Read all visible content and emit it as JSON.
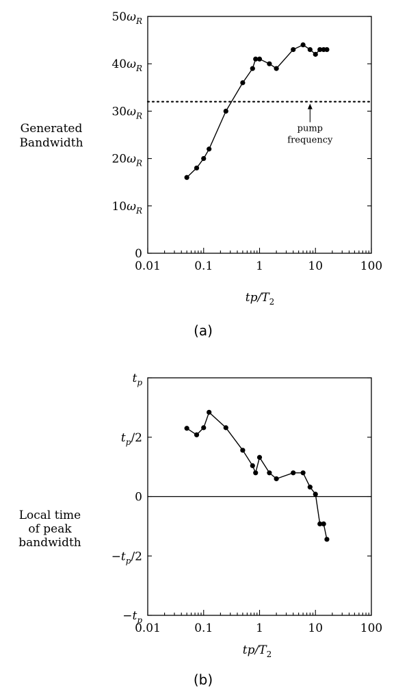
{
  "chart_data": [
    {
      "panel": "(a)",
      "type": "line",
      "x_scale": "log",
      "xlim": [
        0.01,
        100
      ],
      "ylim": [
        0,
        50
      ],
      "xlabel": "tp/T_2",
      "ylabel_lines": [
        "Generated",
        "Bandwidth"
      ],
      "x_ticks": [
        {
          "value": 0.01,
          "label": "0.01"
        },
        {
          "value": 0.1,
          "label": "0.1"
        },
        {
          "value": 1,
          "label": "1"
        },
        {
          "value": 10,
          "label": "10"
        },
        {
          "value": 100,
          "label": "100"
        }
      ],
      "y_ticks": [
        {
          "value": 0,
          "label": "0",
          "sub": ""
        },
        {
          "value": 10,
          "label": "10ω",
          "sub": "R"
        },
        {
          "value": 20,
          "label": "20ω",
          "sub": "R"
        },
        {
          "value": 30,
          "label": "30ω",
          "sub": "R"
        },
        {
          "value": 40,
          "label": "40ω",
          "sub": "R"
        },
        {
          "value": 50,
          "label": "50ω",
          "sub": "R"
        }
      ],
      "series": [
        {
          "x": [
            0.05,
            0.075,
            0.1,
            0.125,
            0.25,
            0.5,
            0.75,
            0.85,
            1.0,
            1.5,
            2.0,
            4.0,
            6.0,
            8.0,
            10.0,
            12.0,
            14.0,
            16.0
          ],
          "y": [
            16,
            18,
            20,
            22,
            30,
            36,
            39,
            41,
            41,
            40,
            39,
            43,
            44,
            43,
            42,
            43,
            43,
            43
          ]
        }
      ],
      "reference_line": {
        "y": 32,
        "style": "dotted"
      },
      "annotation": {
        "lines": [
          "pump",
          "frequency"
        ],
        "x": 8
      }
    },
    {
      "panel": "(b)",
      "type": "line",
      "x_scale": "log",
      "xlim": [
        0.01,
        100
      ],
      "ylim": [
        -1,
        1
      ],
      "xlabel": "tp/T_2",
      "ylabel_lines": [
        "Local time",
        "of peak",
        "bandwidth"
      ],
      "x_ticks": [
        {
          "value": 0.01,
          "label": "0.01"
        },
        {
          "value": 0.1,
          "label": "0.1"
        },
        {
          "value": 1,
          "label": "1"
        },
        {
          "value": 10,
          "label": "10"
        },
        {
          "value": 100,
          "label": "100"
        }
      ],
      "y_ticks": [
        {
          "value": -1,
          "label": "−t",
          "sub": "p",
          "suffix": ""
        },
        {
          "value": -0.5,
          "label": "−t",
          "sub": "p",
          "suffix": "/2"
        },
        {
          "value": 0,
          "label": "0",
          "sub": "",
          "suffix": ""
        },
        {
          "value": 0.5,
          "label": "t",
          "sub": "p",
          "suffix": "/2"
        },
        {
          "value": 1,
          "label": "t",
          "sub": "p",
          "suffix": ""
        }
      ],
      "series": [
        {
          "x": [
            0.05,
            0.075,
            0.1,
            0.125,
            0.25,
            0.5,
            0.75,
            0.85,
            1.0,
            1.5,
            2.0,
            4.0,
            6.0,
            8.0,
            10.0,
            12.0,
            14.0,
            16.0
          ],
          "y": [
            0.575,
            0.52,
            0.58,
            0.71,
            0.58,
            0.39,
            0.26,
            0.2,
            0.33,
            0.2,
            0.15,
            0.2,
            0.2,
            0.08,
            0.02,
            -0.23,
            -0.23,
            -0.36
          ]
        }
      ],
      "reference_line": {
        "y": 0,
        "style": "solid"
      }
    }
  ],
  "captions": [
    "(a)",
    "(b)"
  ]
}
